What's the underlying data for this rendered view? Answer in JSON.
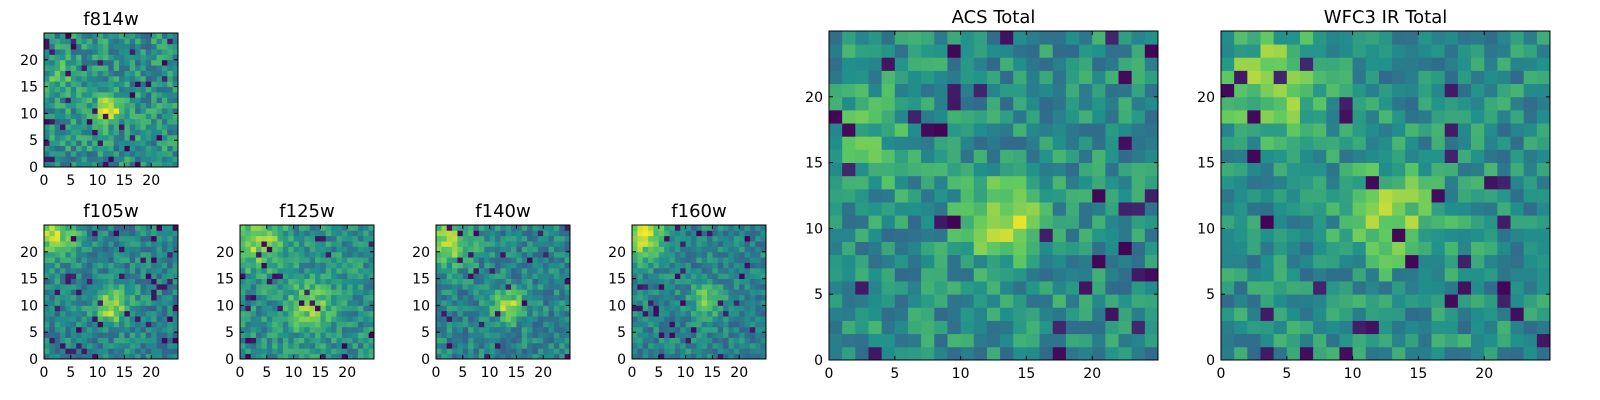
{
  "figure": {
    "colormap": "viridis",
    "colors": [
      "#440154",
      "#3b528b",
      "#21918c",
      "#5ec962",
      "#fde725"
    ]
  },
  "chart_data": [
    {
      "type": "heatmap",
      "id": "f814w",
      "title": "f814w",
      "grid_size": 25,
      "xlim": [
        0,
        25
      ],
      "ylim": [
        0,
        25
      ],
      "xticks": [
        0,
        5,
        10,
        15,
        20
      ],
      "yticks": [
        0,
        5,
        10,
        15,
        20
      ],
      "blobs": [
        {
          "x": 12,
          "y": 10.5,
          "sigma": 1.8,
          "amp": 0.5
        },
        {
          "x": 3,
          "y": 17,
          "sigma": 2.5,
          "amp": 0.15
        }
      ],
      "base": 0.5,
      "noise": 0.18,
      "dark_fraction": 0.05,
      "seed": 11
    },
    {
      "type": "heatmap",
      "id": "f105w",
      "title": "f105w",
      "grid_size": 25,
      "xlim": [
        0,
        25
      ],
      "ylim": [
        0,
        25
      ],
      "xticks": [
        0,
        5,
        10,
        15,
        20
      ],
      "yticks": [
        0,
        5,
        10,
        15,
        20
      ],
      "blobs": [
        {
          "x": 12.5,
          "y": 10,
          "sigma": 2.5,
          "amp": 0.42
        },
        {
          "x": 2,
          "y": 23,
          "sigma": 3,
          "amp": 0.4
        }
      ],
      "base": 0.45,
      "noise": 0.15,
      "dark_fraction": 0.06,
      "seed": 23
    },
    {
      "type": "heatmap",
      "id": "f125w",
      "title": "f125w",
      "grid_size": 25,
      "xlim": [
        0,
        25
      ],
      "ylim": [
        0,
        25
      ],
      "xticks": [
        0,
        5,
        10,
        15,
        20
      ],
      "yticks": [
        0,
        5,
        10,
        15,
        20
      ],
      "blobs": [
        {
          "x": 13,
          "y": 10,
          "sigma": 3,
          "amp": 0.3
        },
        {
          "x": 3,
          "y": 22,
          "sigma": 3.5,
          "amp": 0.35
        }
      ],
      "base": 0.5,
      "noise": 0.15,
      "dark_fraction": 0.05,
      "seed": 37
    },
    {
      "type": "heatmap",
      "id": "f140w",
      "title": "f140w",
      "grid_size": 25,
      "xlim": [
        0,
        25
      ],
      "ylim": [
        0,
        25
      ],
      "xticks": [
        0,
        5,
        10,
        15,
        20
      ],
      "yticks": [
        0,
        5,
        10,
        15,
        20
      ],
      "blobs": [
        {
          "x": 13.5,
          "y": 10,
          "sigma": 2,
          "amp": 0.45
        },
        {
          "x": 3,
          "y": 22,
          "sigma": 3,
          "amp": 0.4
        }
      ],
      "base": 0.45,
      "noise": 0.15,
      "dark_fraction": 0.06,
      "seed": 41
    },
    {
      "type": "heatmap",
      "id": "f160w",
      "title": "f160w",
      "grid_size": 25,
      "xlim": [
        0,
        25
      ],
      "ylim": [
        0,
        25
      ],
      "xticks": [
        0,
        5,
        10,
        15,
        20
      ],
      "yticks": [
        0,
        5,
        10,
        15,
        20
      ],
      "blobs": [
        {
          "x": 14,
          "y": 11,
          "sigma": 2,
          "amp": 0.35
        },
        {
          "x": 2,
          "y": 23,
          "sigma": 3,
          "amp": 0.45
        }
      ],
      "base": 0.45,
      "noise": 0.14,
      "dark_fraction": 0.06,
      "seed": 53
    },
    {
      "type": "heatmap",
      "id": "acs_total",
      "title": "ACS Total",
      "grid_size": 25,
      "xlim": [
        0,
        25
      ],
      "ylim": [
        0,
        25
      ],
      "xticks": [
        0,
        5,
        10,
        15,
        20
      ],
      "yticks": [
        0,
        5,
        10,
        15,
        20
      ],
      "blobs": [
        {
          "x": 13,
          "y": 10.5,
          "sigma": 2,
          "amp": 0.45
        },
        {
          "x": 3,
          "y": 17,
          "sigma": 3,
          "amp": 0.15
        }
      ],
      "base": 0.5,
      "noise": 0.16,
      "dark_fraction": 0.05,
      "seed": 67
    },
    {
      "type": "heatmap",
      "id": "wfc3_ir_total",
      "title": "WFC3 IR Total",
      "grid_size": 25,
      "xlim": [
        0,
        25
      ],
      "ylim": [
        0,
        25
      ],
      "xticks": [
        0,
        5,
        10,
        15,
        20
      ],
      "yticks": [
        0,
        5,
        10,
        15,
        20
      ],
      "blobs": [
        {
          "x": 13,
          "y": 11,
          "sigma": 2.5,
          "amp": 0.3
        },
        {
          "x": 4,
          "y": 21,
          "sigma": 3,
          "amp": 0.3
        }
      ],
      "base": 0.5,
      "noise": 0.16,
      "dark_fraction": 0.06,
      "seed": 79
    }
  ]
}
